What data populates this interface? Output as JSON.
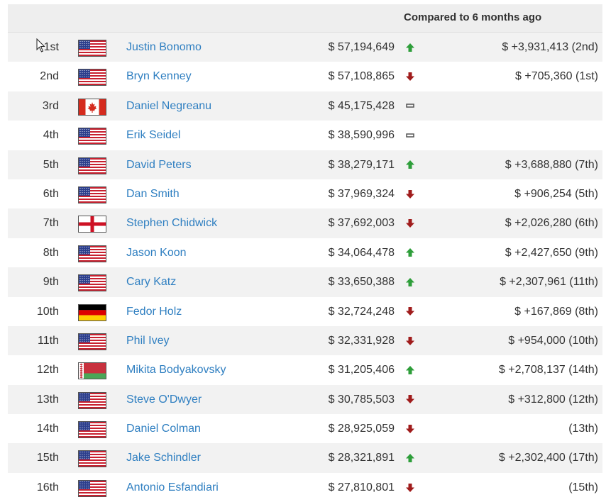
{
  "header": {
    "compared_label": "Compared to 6 months ago"
  },
  "colors": {
    "link": "#2f7fc1",
    "up": "#2e9e3a",
    "down": "#a01c1c",
    "same": "#555555"
  },
  "rows": [
    {
      "rank": "1st",
      "flag": "us",
      "name": "Justin Bonomo",
      "amount": "$ 57,194,649",
      "trend": "up",
      "change": "$ +3,931,413 (2nd)"
    },
    {
      "rank": "2nd",
      "flag": "us",
      "name": "Bryn Kenney",
      "amount": "$ 57,108,865",
      "trend": "down",
      "change": "$ +705,360 (1st)"
    },
    {
      "rank": "3rd",
      "flag": "ca",
      "name": "Daniel Negreanu",
      "amount": "$ 45,175,428",
      "trend": "same",
      "change": ""
    },
    {
      "rank": "4th",
      "flag": "us",
      "name": "Erik Seidel",
      "amount": "$ 38,590,996",
      "trend": "same",
      "change": ""
    },
    {
      "rank": "5th",
      "flag": "us",
      "name": "David Peters",
      "amount": "$ 38,279,171",
      "trend": "up",
      "change": "$ +3,688,880 (7th)"
    },
    {
      "rank": "6th",
      "flag": "us",
      "name": "Dan Smith",
      "amount": "$ 37,969,324",
      "trend": "down",
      "change": "$ +906,254 (5th)"
    },
    {
      "rank": "7th",
      "flag": "en",
      "name": "Stephen Chidwick",
      "amount": "$ 37,692,003",
      "trend": "down",
      "change": "$ +2,026,280 (6th)"
    },
    {
      "rank": "8th",
      "flag": "us",
      "name": "Jason Koon",
      "amount": "$ 34,064,478",
      "trend": "up",
      "change": "$ +2,427,650 (9th)"
    },
    {
      "rank": "9th",
      "flag": "us",
      "name": "Cary Katz",
      "amount": "$ 33,650,388",
      "trend": "up",
      "change": "$ +2,307,961 (11th)"
    },
    {
      "rank": "10th",
      "flag": "de",
      "name": "Fedor Holz",
      "amount": "$ 32,724,248",
      "trend": "down",
      "change": "$ +167,869 (8th)"
    },
    {
      "rank": "11th",
      "flag": "us",
      "name": "Phil Ivey",
      "amount": "$ 32,331,928",
      "trend": "down",
      "change": "$ +954,000 (10th)"
    },
    {
      "rank": "12th",
      "flag": "by",
      "name": "Mikita Bodyakovsky",
      "amount": "$ 31,205,406",
      "trend": "up",
      "change": "$ +2,708,137 (14th)"
    },
    {
      "rank": "13th",
      "flag": "us",
      "name": "Steve O'Dwyer",
      "amount": "$ 30,785,503",
      "trend": "down",
      "change": "$ +312,800 (12th)"
    },
    {
      "rank": "14th",
      "flag": "us",
      "name": "Daniel Colman",
      "amount": "$ 28,925,059",
      "trend": "down",
      "change": "(13th)"
    },
    {
      "rank": "15th",
      "flag": "us",
      "name": "Jake Schindler",
      "amount": "$ 28,321,891",
      "trend": "up",
      "change": "$ +2,302,400 (17th)"
    },
    {
      "rank": "16th",
      "flag": "us",
      "name": "Antonio Esfandiari",
      "amount": "$ 27,810,801",
      "trend": "down",
      "change": "(15th)"
    }
  ]
}
